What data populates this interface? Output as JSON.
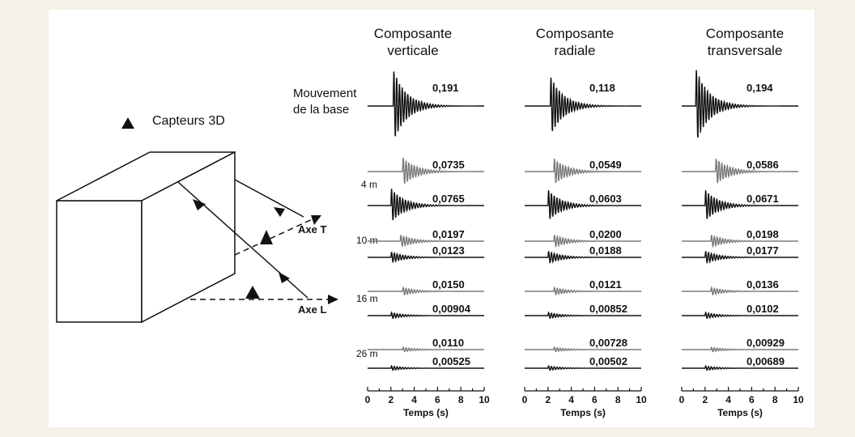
{
  "legend_label": "Capteurs 3D",
  "axis_T": "Axe T",
  "axis_L": "Axe L",
  "base_label_1": "Mouvement",
  "base_label_2": "de la base",
  "levels": [
    "4 m",
    "10 m",
    "16 m",
    "26 m"
  ],
  "columns": [
    {
      "title_1": "Composante",
      "title_2": "verticale",
      "peaks": [
        "0,191",
        "0,0735",
        "0,0765",
        "0,0197",
        "0,0123",
        "0,0150",
        "0,00904",
        "0,0110",
        "0,00525"
      ]
    },
    {
      "title_1": "Composante",
      "title_2": "radiale",
      "peaks": [
        "0,118",
        "0,0549",
        "0,0603",
        "0,0200",
        "0,0188",
        "0,0121",
        "0,00852",
        "0,00728",
        "0,00502"
      ]
    },
    {
      "title_1": "Composante",
      "title_2": "transversale",
      "peaks": [
        "0,194",
        "0,0586",
        "0,0671",
        "0,0198",
        "0,0177",
        "0,0136",
        "0,0102",
        "0,00929",
        "0,00689"
      ]
    }
  ],
  "time_axis": {
    "label": "Temps (s)",
    "ticks": [
      "0",
      "2",
      "4",
      "6",
      "8",
      "10"
    ],
    "range": [
      0,
      10
    ]
  },
  "colors": {
    "trace_upper": "#7a7a7a",
    "trace_lower": "#111111",
    "background": "#f5f1e8"
  }
}
